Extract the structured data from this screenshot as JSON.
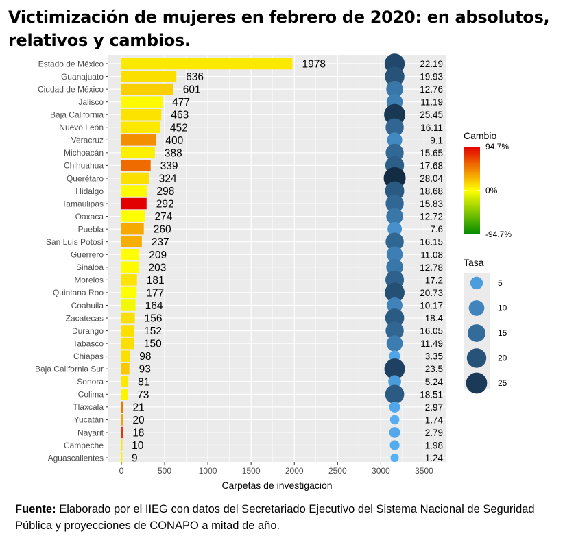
{
  "title": "Victimización de mujeres en febrero de 2020: en absolutos, relativos y cambios.",
  "source": {
    "label": "Fuente:",
    "text": "Elaborado por el IIEG con datos del Secretariado Ejecutivo del Sistema Nacional de Seguridad Pública y proyecciones de CONAPO a mitad de año."
  },
  "colors": {
    "panel": "#ebebeb",
    "grid": "#ffffff",
    "change_high": "#e30000",
    "change_mid": "#ffff00",
    "change_low": "#008b00",
    "rate_low": "#56b1f7",
    "rate_high": "#132b43"
  },
  "chart_data": {
    "type": "bar",
    "xlabel": "Carpetas de investigación",
    "ylabel": "",
    "xlim": [
      -150,
      3750
    ],
    "xticks": [
      0,
      500,
      1000,
      1500,
      2000,
      2500,
      3000,
      3500
    ],
    "grid": true,
    "rate_marker_x": 3160,
    "categories": [
      "Estado de México",
      "Guanajuato",
      "Ciudad de México",
      "Jalisco",
      "Baja California",
      "Nuevo León",
      "Veracruz",
      "Michoacán",
      "Chihuahua",
      "Querétaro",
      "Hidalgo",
      "Tamaulipas",
      "Oaxaca",
      "Puebla",
      "San Luis Potosí",
      "Guerrero",
      "Sinaloa",
      "Morelos",
      "Quintana Roo",
      "Coahuila",
      "Zacatecas",
      "Durango",
      "Tabasco",
      "Chiapas",
      "Baja California Sur",
      "Sonora",
      "Colima",
      "Tlaxcala",
      "Yucatán",
      "Nayarit",
      "Campeche",
      "Aguascalientes"
    ],
    "values": [
      1978,
      636,
      601,
      477,
      463,
      452,
      400,
      388,
      339,
      324,
      298,
      292,
      274,
      260,
      237,
      209,
      203,
      181,
      177,
      164,
      156,
      152,
      150,
      98,
      93,
      81,
      73,
      21,
      20,
      18,
      10,
      9
    ],
    "rates": [
      "22.19",
      "19.93",
      "12.76",
      "11.19",
      "25.45",
      "16.11",
      "9.1",
      "15.65",
      "17.68",
      "28.04",
      "18.68",
      "15.83",
      "12.72",
      "7.6",
      "16.15",
      "11.08",
      "12.78",
      "17.2",
      "20.73",
      "10.17",
      "18.4",
      "16.05",
      "11.49",
      "3.35",
      "23.5",
      "5.24",
      "18.51",
      "2.97",
      "1.74",
      "2.79",
      "1.98",
      "1.24"
    ],
    "change_pct": [
      8,
      12,
      18,
      2,
      10,
      8,
      42,
      6,
      55,
      12,
      2,
      95,
      0,
      32,
      30,
      0,
      1,
      10,
      0,
      -5,
      12,
      12,
      12,
      12,
      20,
      8,
      4,
      50,
      35,
      75,
      10,
      5
    ],
    "legend": {
      "change_title": "Cambio",
      "change_labels": [
        "94.7%",
        "0%",
        "-94.7%"
      ],
      "rate_title": "Tasa",
      "rate_labels": [
        "5",
        "10",
        "15",
        "20",
        "25"
      ],
      "placement": "right"
    }
  }
}
